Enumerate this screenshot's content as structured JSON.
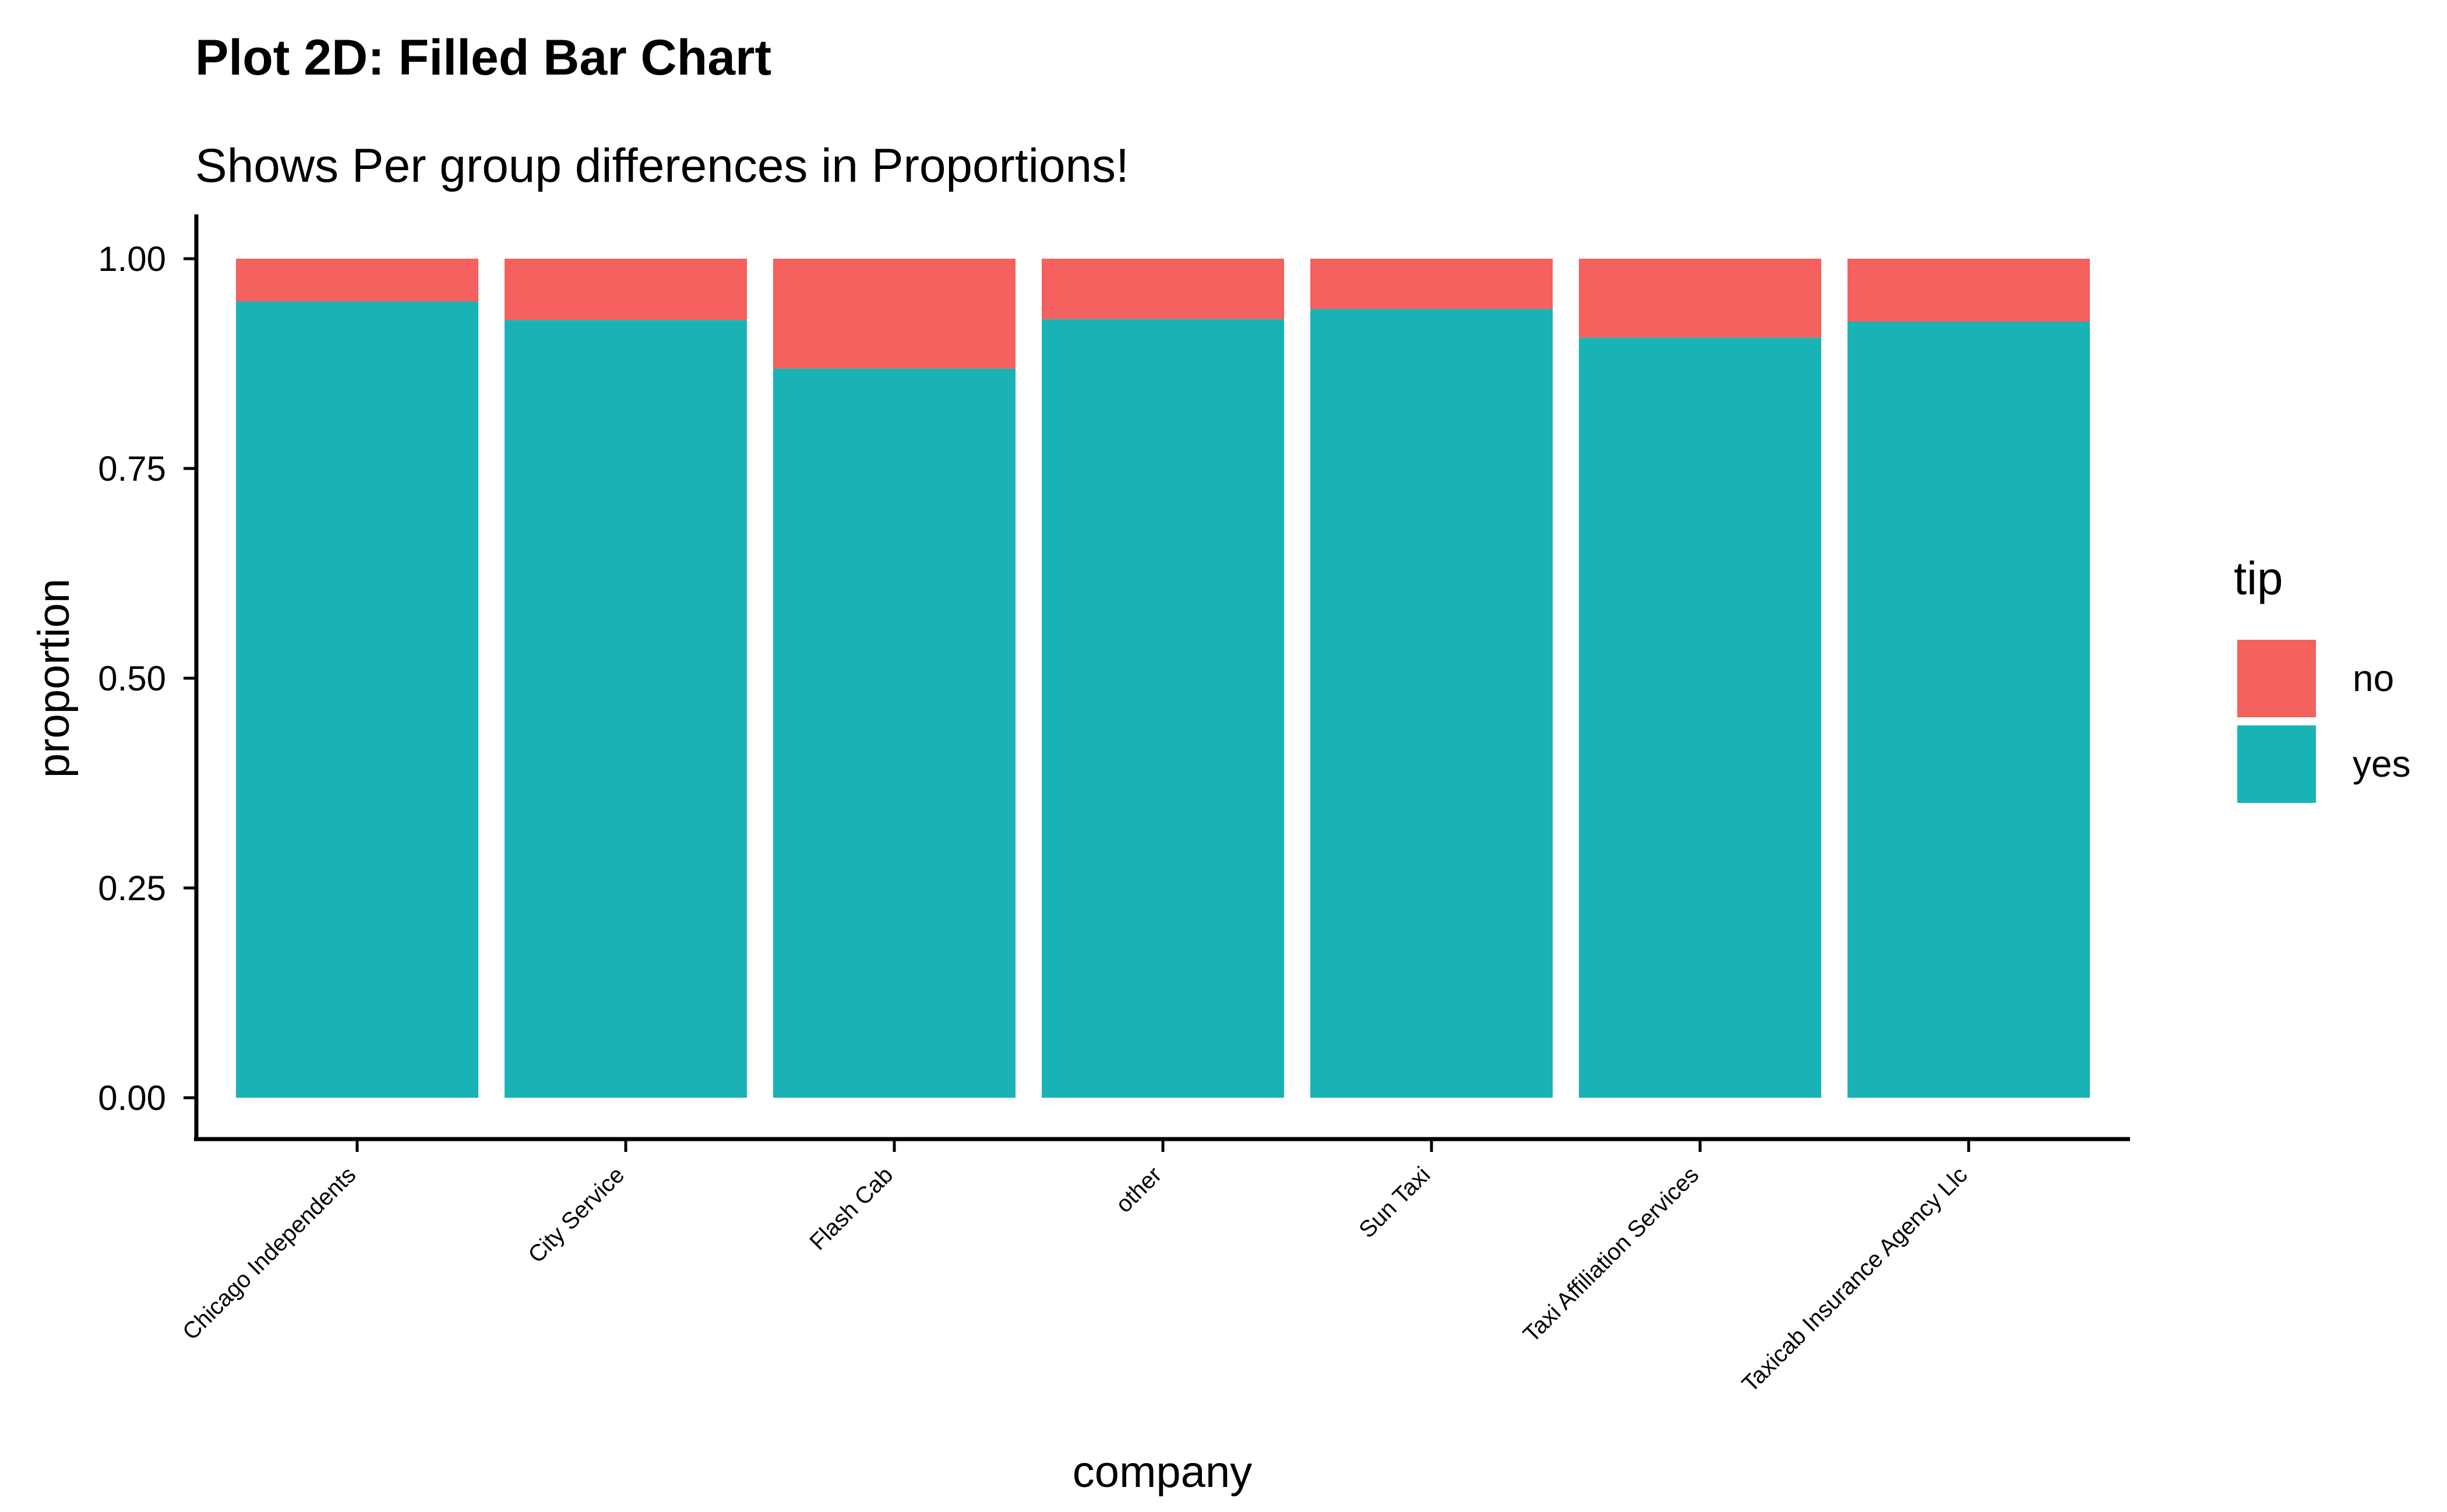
{
  "chart_data": {
    "type": "bar",
    "stacked": true,
    "position": "fill",
    "title": "Plot 2D: Filled Bar Chart",
    "subtitle": "Shows Per group differences in Proportions!",
    "xlabel": "company",
    "ylabel": "proportion",
    "ylim": [
      0,
      1
    ],
    "yticks": [
      "0.00",
      "0.25",
      "0.50",
      "0.75",
      "1.00"
    ],
    "ytick_values": [
      0,
      0.25,
      0.5,
      0.75,
      1.0
    ],
    "categories": [
      "Chicago Independents",
      "City Service",
      "Flash Cab",
      "other",
      "Sun Taxi",
      "Taxi Affiliation Services",
      "Taxicab Insurance Agency Llc"
    ],
    "series": [
      {
        "name": "yes",
        "color": "#19B3B6",
        "values": [
          0.949,
          0.927,
          0.869,
          0.928,
          0.94,
          0.906,
          0.925
        ]
      },
      {
        "name": "no",
        "color": "#F4615E",
        "values": [
          0.051,
          0.073,
          0.131,
          0.072,
          0.06,
          0.094,
          0.075
        ]
      }
    ],
    "legend": {
      "title": "tip",
      "position": "right",
      "entries": [
        {
          "label": "no",
          "color": "#F4615E"
        },
        {
          "label": "yes",
          "color": "#19B3B6"
        }
      ]
    },
    "grid": false
  }
}
